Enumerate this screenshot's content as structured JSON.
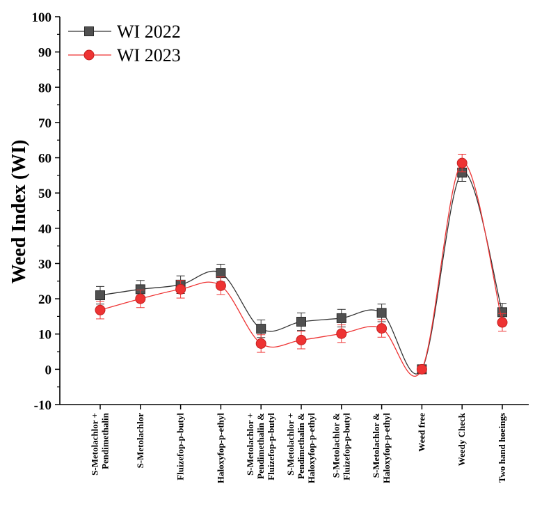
{
  "chart_data": {
    "type": "line",
    "ylabel": "Weed Index (WI)",
    "xlabel": "",
    "ylim": [
      -10,
      100
    ],
    "yticks": [
      -10,
      0,
      10,
      20,
      30,
      40,
      50,
      60,
      70,
      80,
      90,
      100
    ],
    "categories": [
      [
        "S-Metolachlor +",
        "Pendimethalin"
      ],
      [
        "S-Metolachlor"
      ],
      [
        "Fluizefop-p-butyl"
      ],
      [
        "Haloxyfop-p-ethyl"
      ],
      [
        "S-Metolachlor +",
        "Pendimethalin &",
        "Fluizefop-p-butyl"
      ],
      [
        "S-Metolachlor +",
        "Pendimethalin &",
        "Haloxyfop-p-ethyl"
      ],
      [
        "S-Metolachlor &",
        "Fluizefop-p-butyl"
      ],
      [
        "S-Metolachlor &",
        "Haloxyfop-p-ethyl"
      ],
      [
        "Weed free"
      ],
      [
        "Weedy Check"
      ],
      [
        "Two hand hoeings"
      ]
    ],
    "series": [
      {
        "name": "WI 2022",
        "marker": "square",
        "color": "#505050",
        "line_color": "#333333",
        "values": [
          21.0,
          22.7,
          24.0,
          27.3,
          11.5,
          13.5,
          14.5,
          16.0,
          0.0,
          55.8,
          16.2
        ],
        "errors": [
          2.5,
          2.5,
          2.5,
          2.5,
          2.5,
          2.5,
          2.5,
          2.5,
          0.0,
          2.5,
          2.5
        ]
      },
      {
        "name": "WI 2023",
        "marker": "circle",
        "color": "#ee3333",
        "line_color": "#ee3333",
        "values": [
          16.8,
          20.0,
          22.7,
          23.7,
          7.3,
          8.3,
          10.1,
          11.6,
          0.0,
          58.5,
          13.3
        ],
        "errors": [
          2.5,
          2.5,
          2.5,
          2.5,
          2.5,
          2.5,
          2.5,
          2.5,
          0.0,
          2.5,
          2.5
        ]
      }
    ],
    "legend_position": "top-left",
    "grid": false
  }
}
